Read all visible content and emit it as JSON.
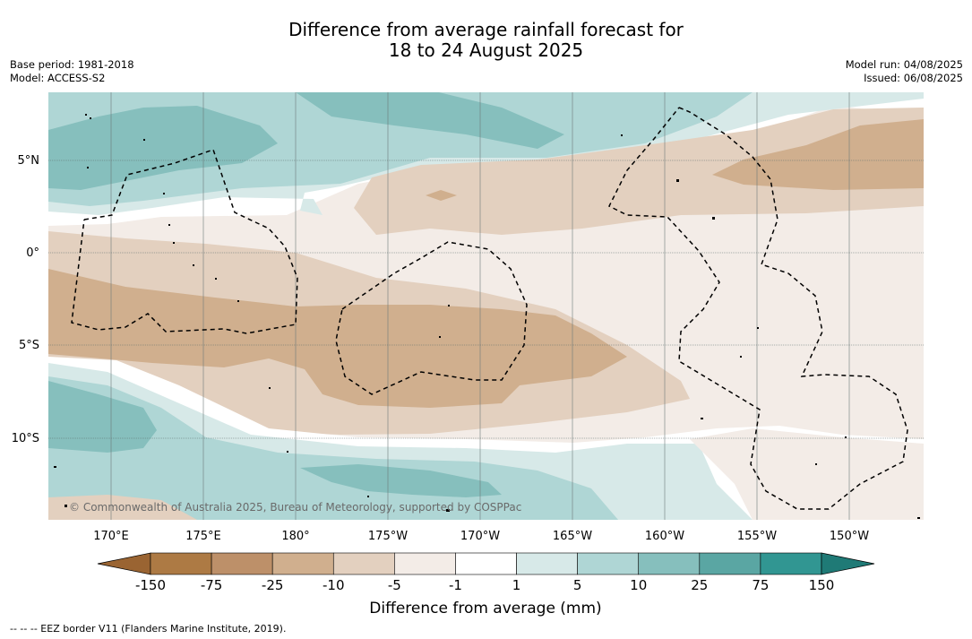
{
  "title": {
    "line1": "Difference from average rainfall forecast for",
    "line2": "18 to 24 August 2025"
  },
  "meta_left": {
    "base_period": "Base period: 1981-2018",
    "model": "Model: ACCESS-S2"
  },
  "meta_right": {
    "model_run": "Model run: 04/08/2025",
    "issued": "Issued: 06/08/2025"
  },
  "map": {
    "lat_labels": [
      "5°N",
      "0°",
      "5°S",
      "10°S"
    ],
    "lon_labels": [
      "170°E",
      "175°E",
      "180°",
      "175°W",
      "170°W",
      "165°W",
      "160°W",
      "155°W",
      "150°W"
    ],
    "copyright": "© Commonwealth of Australia 2025, Bureau of Meteorology, supported by COSPPac"
  },
  "colorbar": {
    "title": "Difference from average (mm)",
    "ticks": [
      "-150",
      "-75",
      "-25",
      "-10",
      "-5",
      "-1",
      "1",
      "5",
      "10",
      "25",
      "75",
      "150"
    ],
    "colors": {
      "below_min": "#9a6432",
      "bins": [
        "#ad7a44",
        "#bd9069",
        "#d0af8e",
        "#e3d0bf",
        "#f3ece7",
        "#ffffff",
        "#d7e9e8",
        "#afd6d5",
        "#86bfbd",
        "#5aa6a3",
        "#319692"
      ],
      "above_max": "#1f7a76"
    }
  },
  "footnote": "--  --  -- EEZ border V11 (Flanders Marine Institute, 2019)."
}
